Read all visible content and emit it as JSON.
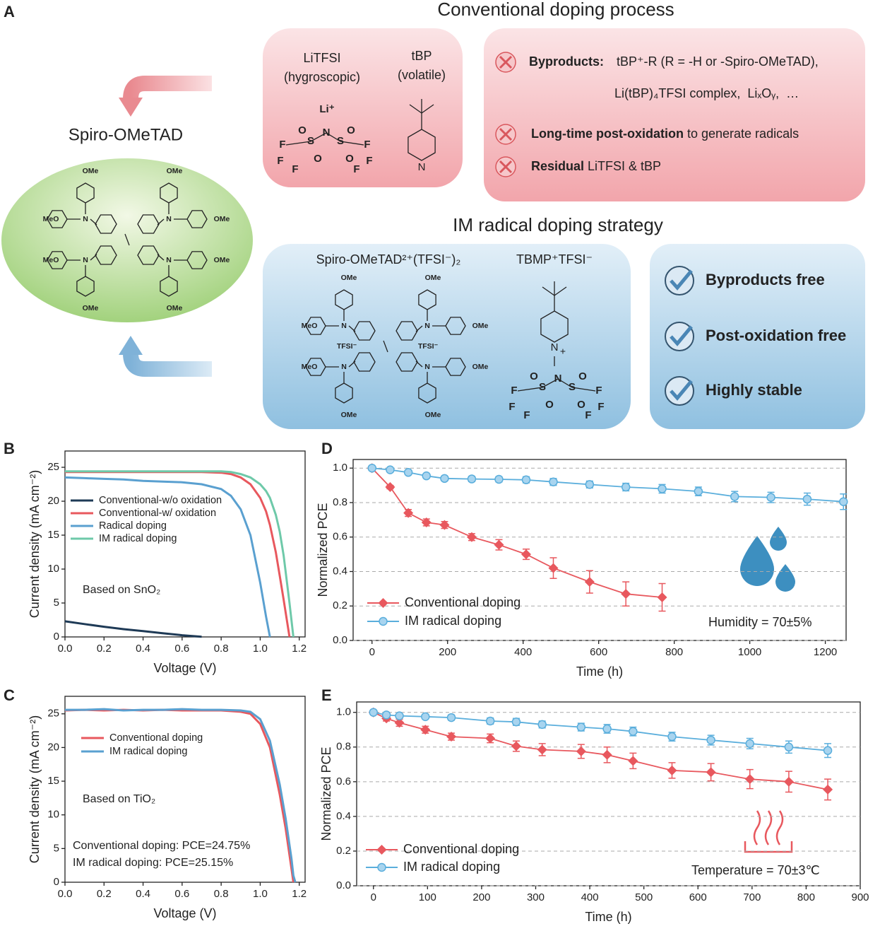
{
  "panel_a": {
    "label": "A",
    "conventional_title": "Conventional doping process",
    "im_title": "IM radical doping strategy",
    "spiro": {
      "name": "Spiro-OMeTAD",
      "atoms": [
        "OMe",
        "OMe",
        "MeO",
        "OMe",
        "MeO",
        "OMe",
        "OMe",
        "OMe",
        "N",
        "N",
        "N",
        "N"
      ]
    },
    "litfsi": {
      "name": "LiTFSI",
      "note": "(hygroscopic)",
      "charge_label": "Li⁺",
      "atoms": [
        "O",
        "S",
        "N",
        "S",
        "O",
        "O",
        "O",
        "F",
        "F",
        "F",
        "F",
        "F",
        "F"
      ]
    },
    "tbp": {
      "name": "tBP",
      "note": "(volatile)",
      "atoms": [
        "N"
      ]
    },
    "issues": [
      {
        "bold": "Byproducts:",
        "text": "tBP⁺-R (R = -H or -Spiro-OMeTAD),",
        "text2": "Li(tBP)₄TFSI complex,  LiₓOᵧ,  …"
      },
      {
        "bold": "Long-time post-oxidation",
        "text": " to generate radicals"
      },
      {
        "bold": "Residual",
        "text": " LiTFSI & tBP"
      }
    ],
    "spiro_dication": {
      "name": "Spiro-OMeTAD²⁺(TFSI⁻)₂",
      "atoms": [
        "OMe",
        "OMe",
        "MeO",
        "OMe",
        "MeO",
        "OMe",
        "OMe",
        "OMe",
        "N",
        "N",
        "N",
        "N",
        "TFSI⁻",
        "TFSI⁻"
      ]
    },
    "tbmp": {
      "name": "TBMP⁺TFSI⁻",
      "atoms": [
        "N",
        "+",
        "O",
        "S",
        "N",
        "S",
        "O",
        "O",
        "O",
        "F",
        "F",
        "F",
        "F",
        "F",
        "F"
      ]
    },
    "benefits": [
      "Byproducts free",
      "Post-oxidation free",
      "Highly stable"
    ]
  },
  "chart_data": [
    {
      "type": "line",
      "label": "B",
      "x_label": "Voltage (V)",
      "y_label": "Current density (mA cm⁻²)",
      "xlim": [
        0,
        1.23
      ],
      "ylim": [
        0,
        27.4
      ],
      "xticks": [
        {
          "value": 0,
          "label": "0.0"
        },
        0.2,
        0.4,
        0.6,
        0.8,
        {
          "value": 1,
          "label": "1.0"
        },
        1.2
      ],
      "yticks": [
        0,
        5,
        10,
        15,
        20,
        25
      ],
      "grid": false,
      "legend": "upper left",
      "annotations": [
        "Based on SnO₂"
      ],
      "x": [
        0,
        0.1,
        0.2,
        0.3,
        0.4,
        0.5,
        0.6,
        0.7,
        0.8,
        0.85,
        0.9,
        0.95,
        1.0,
        1.03,
        1.05,
        1.08,
        1.1,
        1.12,
        1.15,
        1.17
      ],
      "series": [
        {
          "name": "Conventional-w/o oxidation",
          "color": "#1e3a56",
          "values": [
            2.3,
            1.9,
            1.5,
            1.15,
            0.85,
            0.55,
            0.25,
            0.02,
            null,
            null,
            null,
            null,
            null,
            null,
            null,
            null,
            null,
            null,
            null,
            null
          ]
        },
        {
          "name": "Conventional-w/ oxidation",
          "color": "#e8585e",
          "values": [
            24.3,
            24.3,
            24.3,
            24.3,
            24.3,
            24.3,
            24.3,
            24.3,
            24.2,
            24.0,
            23.5,
            22.5,
            20.5,
            18.5,
            16.5,
            12.5,
            9,
            5.5,
            0,
            null
          ]
        },
        {
          "name": "Radical doping",
          "color": "#5aa0d0",
          "values": [
            23.5,
            23.4,
            23.3,
            23.2,
            23.0,
            22.9,
            22.8,
            22.5,
            21.8,
            20.8,
            18.8,
            15,
            8,
            3,
            0,
            null,
            null,
            null,
            null,
            null
          ]
        },
        {
          "name": "IM radical doping",
          "color": "#6ec9a9",
          "values": [
            24.4,
            24.4,
            24.4,
            24.4,
            24.4,
            24.4,
            24.4,
            24.4,
            24.4,
            24.3,
            24.0,
            23.5,
            22.5,
            21.5,
            20.5,
            18,
            15.5,
            12,
            5,
            0
          ]
        }
      ]
    },
    {
      "type": "line",
      "label": "C",
      "x_label": "Voltage (V)",
      "y_label": "Current density (mA cm⁻²)",
      "xlim": [
        0,
        1.23
      ],
      "ylim": [
        0,
        27.6
      ],
      "xticks": [
        {
          "value": 0,
          "label": "0.0"
        },
        0.2,
        0.4,
        0.6,
        0.8,
        {
          "value": 1,
          "label": "1.0"
        },
        1.2
      ],
      "yticks": [
        0,
        5,
        10,
        15,
        20,
        25
      ],
      "grid": false,
      "legend": "upper left",
      "annotations": [
        "Based on TiO₂",
        "Conventional doping: PCE=24.75%",
        "IM radical doping: PCE=25.15%"
      ],
      "x": [
        0,
        0.1,
        0.2,
        0.3,
        0.4,
        0.5,
        0.6,
        0.7,
        0.8,
        0.9,
        0.95,
        1.0,
        1.05,
        1.1,
        1.13,
        1.16,
        1.17,
        1.18
      ],
      "series": [
        {
          "name": "Conventional doping",
          "color": "#e8585e",
          "values": [
            25.5,
            25.6,
            25.5,
            25.6,
            25.5,
            25.6,
            25.5,
            25.5,
            25.5,
            25.3,
            25.0,
            23.5,
            20,
            13,
            8,
            2,
            0,
            null
          ]
        },
        {
          "name": "IM radical doping",
          "color": "#5aa0d0",
          "values": [
            25.6,
            25.6,
            25.7,
            25.5,
            25.6,
            25.6,
            25.7,
            25.6,
            25.6,
            25.5,
            25.3,
            24.2,
            21,
            14.5,
            9.5,
            3.5,
            1,
            0
          ]
        }
      ]
    },
    {
      "type": "line",
      "label": "D",
      "x_label": "Time (h)",
      "y_label": "Normalized PCE",
      "xlim": [
        -50,
        1255
      ],
      "ylim": [
        0,
        1.05
      ],
      "xticks": [
        0,
        200,
        400,
        600,
        800,
        1000,
        1200
      ],
      "yticks": [
        {
          "value": 0,
          "label": "0.0"
        },
        0.2,
        0.4,
        0.6,
        0.8,
        {
          "value": 1,
          "label": "1.0"
        }
      ],
      "grid": true,
      "legend": "lower left",
      "annotations": [
        "Humidity = 70±5%"
      ],
      "series": [
        {
          "name": "Conventional doping",
          "color": "#e8585e",
          "marker": "diamond",
          "x": [
            0,
            48,
            96,
            144,
            192,
            264,
            336,
            408,
            480,
            576,
            672,
            768
          ],
          "values": [
            1.0,
            0.89,
            0.74,
            0.685,
            0.67,
            0.6,
            0.555,
            0.5,
            0.42,
            0.34,
            0.27,
            0.25
          ],
          "errors": [
            0,
            0.01,
            0.02,
            0.02,
            0.02,
            0.02,
            0.03,
            0.03,
            0.06,
            0.065,
            0.07,
            0.08
          ]
        },
        {
          "name": "IM radical doping",
          "color": "#5aaedc",
          "marker": "circle",
          "x": [
            0,
            48,
            96,
            144,
            192,
            264,
            336,
            408,
            480,
            576,
            672,
            768,
            864,
            960,
            1056,
            1152,
            1248
          ],
          "values": [
            1.0,
            0.99,
            0.975,
            0.955,
            0.94,
            0.937,
            0.935,
            0.932,
            0.92,
            0.905,
            0.89,
            0.88,
            0.865,
            0.835,
            0.83,
            0.82,
            0.805
          ],
          "errors": [
            0,
            0.005,
            0.008,
            0.01,
            0.012,
            0.015,
            0.015,
            0.018,
            0.02,
            0.02,
            0.022,
            0.025,
            0.025,
            0.03,
            0.03,
            0.035,
            0.045
          ]
        }
      ]
    },
    {
      "type": "line",
      "label": "E",
      "x_label": "Time (h)",
      "y_label": "Normalized PCE",
      "xlim": [
        -31,
        900
      ],
      "ylim": [
        0,
        1.06
      ],
      "xticks": [
        0,
        100,
        200,
        300,
        400,
        500,
        600,
        700,
        800,
        900
      ],
      "yticks": [
        {
          "value": 0,
          "label": "0.0"
        },
        0.2,
        0.4,
        0.6,
        0.8,
        {
          "value": 1,
          "label": "1.0"
        }
      ],
      "grid": true,
      "legend": "lower left",
      "annotations": [
        "Temperature = 70±3℃"
      ],
      "series": [
        {
          "name": "Conventional doping",
          "color": "#e8585e",
          "marker": "diamond",
          "x": [
            0,
            24,
            48,
            96,
            144,
            216,
            264,
            312,
            384,
            432,
            480,
            552,
            624,
            696,
            768,
            840
          ],
          "values": [
            1.0,
            0.965,
            0.94,
            0.9,
            0.86,
            0.85,
            0.805,
            0.785,
            0.775,
            0.755,
            0.72,
            0.665,
            0.655,
            0.615,
            0.6,
            0.555
          ],
          "errors": [
            0,
            0.015,
            0.02,
            0.02,
            0.02,
            0.025,
            0.03,
            0.035,
            0.04,
            0.045,
            0.045,
            0.045,
            0.05,
            0.055,
            0.06,
            0.06
          ]
        },
        {
          "name": "IM radical doping",
          "color": "#5aaedc",
          "marker": "circle",
          "x": [
            0,
            24,
            48,
            96,
            144,
            216,
            264,
            312,
            384,
            432,
            480,
            552,
            624,
            696,
            768,
            840
          ],
          "values": [
            1.0,
            0.985,
            0.98,
            0.975,
            0.97,
            0.95,
            0.945,
            0.93,
            0.915,
            0.905,
            0.89,
            0.86,
            0.84,
            0.82,
            0.8,
            0.78
          ],
          "errors": [
            0,
            0.01,
            0.01,
            0.012,
            0.015,
            0.018,
            0.02,
            0.02,
            0.022,
            0.025,
            0.025,
            0.025,
            0.028,
            0.03,
            0.035,
            0.04
          ]
        }
      ]
    }
  ]
}
